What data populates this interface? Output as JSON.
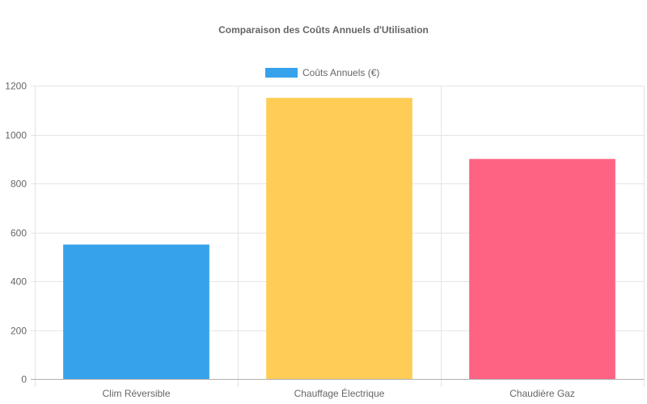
{
  "chart_data": {
    "type": "bar",
    "title": "Comparaison des Coûts Annuels d'Utilisation",
    "categories": [
      "Clim Réversible",
      "Chauffage Électrique",
      "Chaudière Gaz"
    ],
    "series": [
      {
        "name": "Coûts Annuels (€)",
        "values": [
          550,
          1150,
          900
        ],
        "colors": [
          "#36a2eb",
          "#ffcd56",
          "#ff6384"
        ]
      }
    ],
    "xlabel": "",
    "ylabel": "",
    "ylim": [
      0,
      1200
    ],
    "yticks": [
      0,
      200,
      400,
      600,
      800,
      1000,
      1200
    ],
    "grid": true,
    "legend_position": "top"
  },
  "colors": {
    "legend_swatch": "#36a2eb",
    "grid": "#e5e5e5",
    "axis": "#b0b0b0",
    "text": "#666666"
  }
}
